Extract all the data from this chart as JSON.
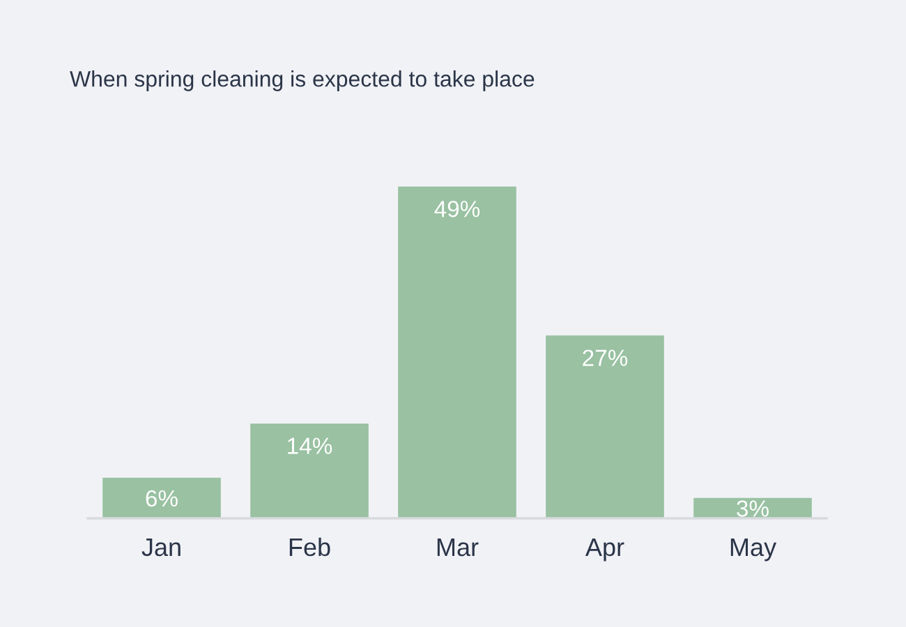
{
  "chart_data": {
    "type": "bar",
    "title": "When spring cleaning is expected to take place",
    "categories": [
      "Jan",
      "Feb",
      "Mar",
      "Apr",
      "May"
    ],
    "values": [
      6,
      14,
      49,
      27,
      3
    ],
    "value_labels": [
      "6%",
      "14%",
      "49%",
      "27%",
      "3%"
    ],
    "color": "#99c1a2",
    "tick_labels": "x"
  }
}
